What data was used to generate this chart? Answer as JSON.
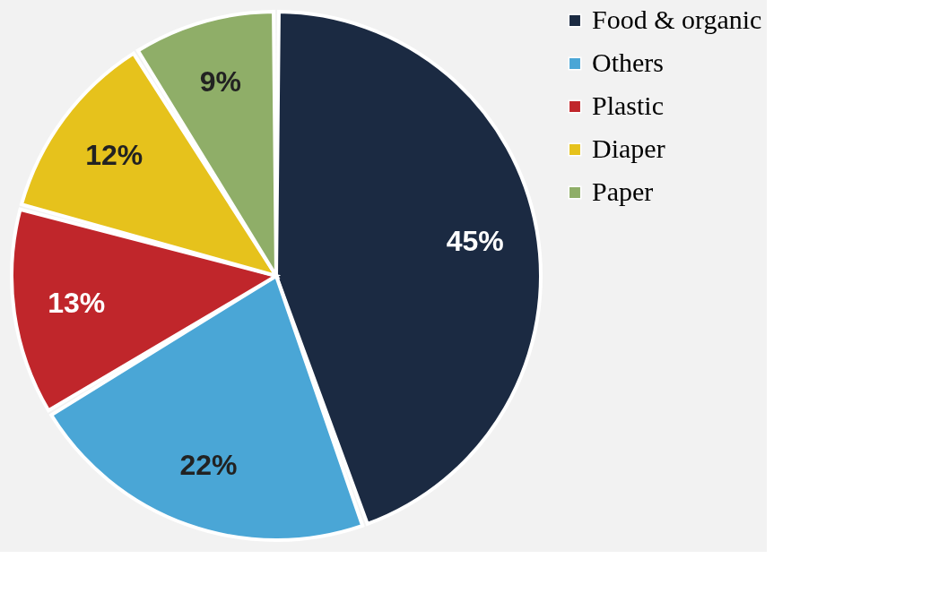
{
  "chart_data": {
    "type": "pie",
    "categories": [
      "Food & organic",
      "Others",
      "Plastic",
      "Diaper",
      "Paper"
    ],
    "values": [
      45,
      22,
      13,
      12,
      9
    ],
    "colors": [
      "#1b2a42",
      "#4aa6d6",
      "#c0262b",
      "#e6c21c",
      "#8fae68"
    ],
    "value_labels": [
      "45%",
      "22%",
      "13%",
      "12%",
      "9%"
    ],
    "legend": "right"
  }
}
